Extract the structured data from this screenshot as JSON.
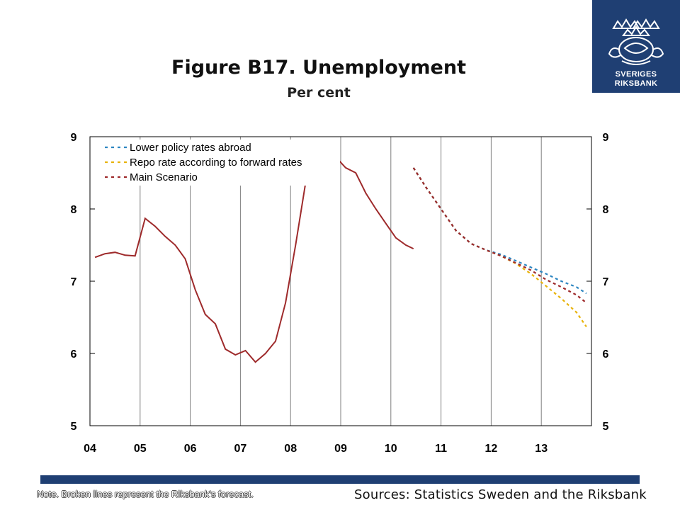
{
  "logo": {
    "line1": "SVERIGES",
    "line2": "RIKSBANK",
    "icon": "riksbank-crest-icon"
  },
  "footer": {
    "note": "Note. Broken lines represent the Riksbank's forecast.",
    "sources": "Sources: Statistics Sweden and the Riksbank"
  },
  "colors": {
    "historical": "#9e2a2b",
    "lower_policy_rates_abroad": "#2e86c1",
    "repo_rate_forward": "#e8b30a",
    "main_scenario": "#9e2a2b",
    "brand_blue": "#1f3f73"
  },
  "chart_data": {
    "type": "line",
    "title": "Figure B17. Unemployment",
    "subtitle": "Per cent",
    "x_tick_labels": [
      "04",
      "05",
      "06",
      "07",
      "08",
      "09",
      "10",
      "11",
      "12",
      "13"
    ],
    "x_range": [
      2004.0,
      2014.0
    ],
    "ylim": [
      5,
      9
    ],
    "y_ticks": [
      5,
      6,
      7,
      8,
      9
    ],
    "grid": "vertical",
    "legend_position": "top-left",
    "historical": {
      "x": [
        2004.1,
        2004.3,
        2004.5,
        2004.7,
        2004.9,
        2005.1,
        2005.3,
        2005.5,
        2005.7,
        2005.9,
        2006.1,
        2006.3,
        2006.5,
        2006.7,
        2006.9,
        2007.1,
        2007.3,
        2007.5,
        2007.7,
        2007.9,
        2008.1,
        2008.3,
        2008.5,
        2008.7,
        2008.9,
        2009.1,
        2009.3,
        2009.5,
        2009.7,
        2009.9,
        2010.1,
        2010.3,
        2010.45
      ],
      "y": [
        7.33,
        7.38,
        7.4,
        7.36,
        7.35,
        7.87,
        7.76,
        7.62,
        7.5,
        7.31,
        6.88,
        6.54,
        6.41,
        6.06,
        5.98,
        6.04,
        5.88,
        6.0,
        6.17,
        6.7,
        7.5,
        8.36,
        8.6,
        8.76,
        8.72,
        8.57,
        8.5,
        8.22,
        8.0,
        7.8,
        7.6,
        7.5,
        7.45
      ]
    },
    "series": [
      {
        "name": "Lower policy rates abroad",
        "style": "dashed",
        "x": [
          2010.45,
          2010.7,
          2011.0,
          2011.3,
          2011.6,
          2011.9,
          2012.2,
          2012.5,
          2012.8,
          2013.1,
          2013.4,
          2013.7,
          2013.9
        ],
        "y": [
          8.57,
          8.3,
          8.0,
          7.7,
          7.52,
          7.43,
          7.37,
          7.28,
          7.19,
          7.1,
          7.0,
          6.92,
          6.83
        ]
      },
      {
        "name": "Repo rate according to forward rates",
        "style": "dashed",
        "x": [
          2010.45,
          2010.7,
          2011.0,
          2011.3,
          2011.6,
          2011.9,
          2012.2,
          2012.5,
          2012.8,
          2013.1,
          2013.4,
          2013.7,
          2013.9
        ],
        "y": [
          8.57,
          8.3,
          8.0,
          7.7,
          7.52,
          7.43,
          7.35,
          7.24,
          7.1,
          6.93,
          6.76,
          6.57,
          6.37
        ]
      },
      {
        "name": "Main Scenario",
        "style": "dashed",
        "x": [
          2010.45,
          2010.7,
          2011.0,
          2011.3,
          2011.6,
          2011.9,
          2012.2,
          2012.5,
          2012.8,
          2013.1,
          2013.4,
          2013.7,
          2013.9
        ],
        "y": [
          8.57,
          8.3,
          8.0,
          7.7,
          7.52,
          7.43,
          7.35,
          7.25,
          7.15,
          7.02,
          6.92,
          6.81,
          6.7
        ]
      }
    ]
  }
}
